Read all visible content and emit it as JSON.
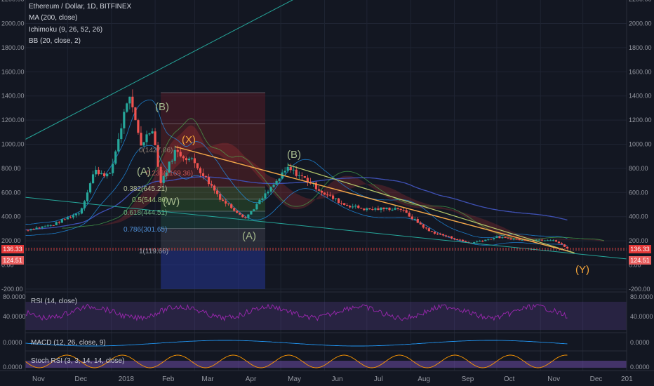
{
  "header": {
    "symbol_title": "Ethereum / Dollar, 1D, BITFINEX",
    "indicators": [
      "MA (200, close)",
      "Ichimoku (9, 26, 52, 26)",
      "BB (20, close, 2)"
    ]
  },
  "price_axis": {
    "ticks": [
      "2200.00",
      "2000.00",
      "1800.00",
      "1600.00",
      "1400.00",
      "1200.00",
      "1000.00",
      "800.00",
      "600.00",
      "400.00",
      "200.00",
      "0.00",
      "-200.00"
    ],
    "last_price_tag": "136.33",
    "second_tag": "124.51"
  },
  "time_axis": {
    "labels": [
      "Nov",
      "Dec",
      "2018",
      "Feb",
      "Mar",
      "Apr",
      "May",
      "Jun",
      "Jul",
      "Aug",
      "Sep",
      "Oct",
      "Nov",
      "Dec",
      "201"
    ]
  },
  "fibonacci": {
    "labels": [
      "0(1427.06)",
      "0.236(1169.36)",
      "0.382(645.21)",
      "0.5(544.86)",
      "0.618(444.51)",
      "0.786(301.65)",
      "1(119.66)"
    ]
  },
  "wave_labels": [
    "(B)",
    "(X)",
    "(B)",
    "(A)",
    "(W)",
    "(A)",
    "(Y)"
  ],
  "panes": {
    "rsi": {
      "label": "RSI (14, close)",
      "ticks": [
        "80.0000",
        "40.0000"
      ]
    },
    "macd": {
      "label": "MACD (12, 26, close, 9)",
      "ticks": [
        "0.0000"
      ]
    },
    "stoch": {
      "label": "Stoch RSI (3, 3, 14, 14, close)",
      "ticks": [
        "0.0000"
      ]
    }
  },
  "colors": {
    "background": "#131722",
    "bullish": "#26a69a",
    "bearish": "#ef5350",
    "ma200": "#3f51b5",
    "bollinger": "#2196f3",
    "trendline": "#f5a94a",
    "channel": "#26a69a",
    "rsi": "#9c27b0",
    "price_tag": "#e23838"
  },
  "chart_data": {
    "type": "candlestick",
    "title": "Ethereum / Dollar, 1D, BITFINEX",
    "x_range": [
      "2017-11-01",
      "2019-01-01"
    ],
    "ylim": [
      -200,
      2200
    ],
    "grid": true,
    "legend": "top-left",
    "close_path": [
      [
        "2017-11-01",
        290
      ],
      [
        "2017-11-20",
        330
      ],
      [
        "2017-12-10",
        440
      ],
      [
        "2017-12-20",
        780
      ],
      [
        "2017-12-31",
        740
      ],
      [
        "2018-01-10",
        1250
      ],
      [
        "2018-01-13",
        1410
      ],
      [
        "2018-01-22",
        1000
      ],
      [
        "2018-01-30",
        1140
      ],
      [
        "2018-02-05",
        680
      ],
      [
        "2018-02-15",
        940
      ],
      [
        "2018-02-28",
        860
      ],
      [
        "2018-03-10",
        700
      ],
      [
        "2018-03-20",
        540
      ],
      [
        "2018-04-06",
        390
      ],
      [
        "2018-04-20",
        580
      ],
      [
        "2018-05-06",
        800
      ],
      [
        "2018-05-20",
        700
      ],
      [
        "2018-06-01",
        590
      ],
      [
        "2018-06-15",
        500
      ],
      [
        "2018-07-01",
        460
      ],
      [
        "2018-07-24",
        470
      ],
      [
        "2018-08-14",
        280
      ],
      [
        "2018-09-12",
        180
      ],
      [
        "2018-10-01",
        230
      ],
      [
        "2018-10-20",
        205
      ],
      [
        "2018-11-10",
        210
      ],
      [
        "2018-11-20",
        136.33
      ]
    ],
    "fib_levels": [
      {
        "ratio": 0,
        "price": 1427.06
      },
      {
        "ratio": 0.236,
        "price": 1169.36
      },
      {
        "ratio": 0.382,
        "price": 645.21
      },
      {
        "ratio": 0.5,
        "price": 544.86
      },
      {
        "ratio": 0.618,
        "price": 444.51
      },
      {
        "ratio": 0.786,
        "price": 301.65
      },
      {
        "ratio": 1,
        "price": 119.66
      }
    ],
    "last_price": 136.33
  }
}
